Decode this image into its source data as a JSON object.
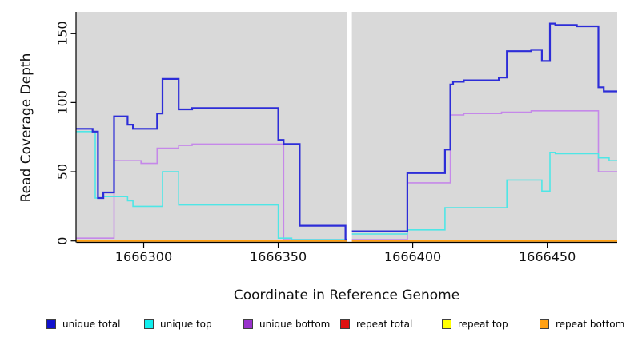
{
  "chart_data": {
    "type": "line",
    "step": true,
    "title": "",
    "xlabel": "Coordinate in Reference Genome",
    "ylabel": "Read Coverage Depth",
    "xlim": [
      1666275,
      1666476
    ],
    "ylim": [
      0,
      150
    ],
    "xticks": [
      1666300,
      1666350,
      1666400,
      1666450
    ],
    "yticks": [
      0,
      50,
      100,
      150
    ],
    "panel_bg": "#d9d9d9",
    "gap_x": [
      1666375.6,
      1666377.4
    ],
    "grid": "off",
    "legend_position": "bottom",
    "series": [
      {
        "name": "repeat total",
        "color": "#de1212",
        "width": 1.5,
        "points": [
          [
            1666275,
            0
          ]
        ]
      },
      {
        "name": "repeat top",
        "color": "#f0f010",
        "width": 1.5,
        "points": [
          [
            1666275,
            0
          ]
        ]
      },
      {
        "name": "repeat bottom",
        "color": "#ff9d0c",
        "width": 2,
        "points": [
          [
            1666275,
            0
          ]
        ]
      },
      {
        "name": "unique bottom",
        "color": "#c588e9",
        "width": 1.6,
        "points": [
          [
            1666275,
            2
          ],
          [
            1666289,
            58
          ],
          [
            1666299,
            56
          ],
          [
            1666305,
            67
          ],
          [
            1666313,
            69
          ],
          [
            1666318,
            70
          ],
          [
            1666352,
            1
          ],
          [
            1666398,
            42
          ],
          [
            1666414,
            91
          ],
          [
            1666419,
            92
          ],
          [
            1666433,
            93
          ],
          [
            1666444,
            94
          ],
          [
            1666469,
            50
          ]
        ]
      },
      {
        "name": "unique top",
        "color": "#4ee6e6",
        "width": 1.6,
        "points": [
          [
            1666275,
            79
          ],
          [
            1666282,
            31
          ],
          [
            1666285,
            32
          ],
          [
            1666294,
            29
          ],
          [
            1666296,
            25
          ],
          [
            1666307,
            50
          ],
          [
            1666313,
            26
          ],
          [
            1666350,
            2
          ],
          [
            1666355,
            1
          ],
          [
            1666377,
            5
          ],
          [
            1666398,
            8
          ],
          [
            1666412,
            24
          ],
          [
            1666435,
            44
          ],
          [
            1666448,
            36
          ],
          [
            1666451,
            64
          ],
          [
            1666453,
            63
          ],
          [
            1666469,
            60
          ],
          [
            1666473,
            58
          ]
        ]
      },
      {
        "name": "unique total",
        "color": "#2d2dd8",
        "width": 2.2,
        "points": [
          [
            1666275,
            81
          ],
          [
            1666281,
            79
          ],
          [
            1666283,
            31
          ],
          [
            1666285,
            35
          ],
          [
            1666289,
            90
          ],
          [
            1666294,
            84
          ],
          [
            1666296,
            81
          ],
          [
            1666305,
            92
          ],
          [
            1666307,
            117
          ],
          [
            1666313,
            95
          ],
          [
            1666318,
            96
          ],
          [
            1666350,
            73
          ],
          [
            1666352,
            70
          ],
          [
            1666358,
            11
          ],
          [
            1666375,
            1
          ],
          [
            1666377,
            7
          ],
          [
            1666398,
            49
          ],
          [
            1666412,
            66
          ],
          [
            1666414,
            113
          ],
          [
            1666415,
            115
          ],
          [
            1666419,
            116
          ],
          [
            1666432,
            118
          ],
          [
            1666435,
            137
          ],
          [
            1666444,
            138
          ],
          [
            1666448,
            130
          ],
          [
            1666451,
            157
          ],
          [
            1666453,
            156
          ],
          [
            1666461,
            155
          ],
          [
            1666469,
            111
          ],
          [
            1666471,
            108
          ]
        ]
      }
    ],
    "legend": [
      {
        "label": "unique total",
        "swatch": "#1111cd"
      },
      {
        "label": "unique top",
        "swatch": "#10eeee"
      },
      {
        "label": "unique bottom",
        "swatch": "#9932cc"
      },
      {
        "label": "repeat total",
        "swatch": "#e01111"
      },
      {
        "label": "repeat top",
        "swatch": "#ffff00"
      },
      {
        "label": "repeat bottom",
        "swatch": "#ffa012"
      }
    ]
  }
}
